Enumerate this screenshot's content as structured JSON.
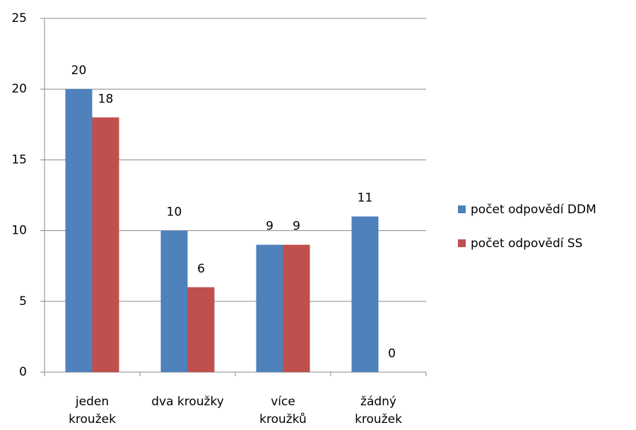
{
  "chart_data": {
    "type": "bar",
    "categories": [
      "jeden kroužek",
      "dva kroužky",
      "více kroužků",
      "žádný kroužek"
    ],
    "series": [
      {
        "name": "počet odpovědí DDM",
        "color": "#4f81bd",
        "values": [
          20,
          10,
          9,
          11
        ]
      },
      {
        "name": "počet odpovědí SS",
        "color": "#c0504d",
        "values": [
          18,
          6,
          9,
          0
        ]
      }
    ],
    "ylim": [
      0,
      25
    ],
    "yticks": [
      0,
      5,
      10,
      15,
      20,
      25
    ],
    "grid": true,
    "legend": "right"
  }
}
